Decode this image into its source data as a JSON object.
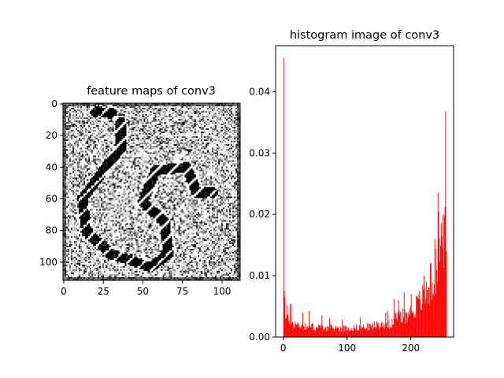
{
  "chart_data": [
    {
      "type": "heatmap",
      "title": "feature maps of conv3",
      "colormap": "gray",
      "shape": [
        112,
        112
      ],
      "xlim": [
        -0.5,
        111.5
      ],
      "ylim": [
        111.5,
        -0.5
      ],
      "xticks": [
        0,
        25,
        50,
        75,
        100
      ],
      "yticks": [
        0,
        20,
        40,
        60,
        80,
        100
      ],
      "description_of_content": "noisy light-gray background with a dark dashed curve (snake-like stroke) forming a 'C' arc and a spiral",
      "stroke_segments": [
        {
          "from": [
            20,
            5
          ],
          "to": [
            30,
            6
          ]
        },
        {
          "from": [
            36,
            12
          ],
          "to": [
            36,
            28
          ]
        },
        {
          "from": [
            34,
            30
          ],
          "to": [
            12,
            60
          ]
        },
        {
          "from": [
            12,
            60
          ],
          "to": [
            14,
            80
          ]
        },
        {
          "from": [
            14,
            80
          ],
          "to": [
            30,
            95
          ]
        },
        {
          "from": [
            30,
            95
          ],
          "to": [
            55,
            103
          ]
        },
        {
          "from": [
            55,
            103
          ],
          "to": [
            66,
            95
          ]
        },
        {
          "from": [
            66,
            95
          ],
          "to": [
            64,
            75
          ]
        },
        {
          "from": [
            64,
            75
          ],
          "to": [
            50,
            62
          ]
        },
        {
          "from": [
            50,
            62
          ],
          "to": [
            58,
            42
          ]
        },
        {
          "from": [
            58,
            42
          ],
          "to": [
            78,
            40
          ]
        },
        {
          "from": [
            78,
            40
          ],
          "to": [
            84,
            56
          ]
        },
        {
          "from": [
            84,
            56
          ],
          "to": [
            94,
            56
          ]
        }
      ]
    },
    {
      "type": "bar",
      "title": "histogram image of conv3",
      "color": "#ff0000",
      "xlim": [
        -12,
        267
      ],
      "ylim": [
        0,
        0.0475
      ],
      "xticks": [
        0,
        100,
        200
      ],
      "yticks": [
        0.0,
        0.01,
        0.02,
        0.03,
        0.04
      ],
      "ytick_labels": [
        "0.00",
        "0.01",
        "0.02",
        "0.03",
        "0.04"
      ],
      "bins": 256,
      "spikes": [
        {
          "x": 0,
          "y": 0.0455
        },
        {
          "x": 1,
          "y": 0.0075
        },
        {
          "x": 2,
          "y": 0.0065
        },
        {
          "x": 5,
          "y": 0.0052
        },
        {
          "x": 10,
          "y": 0.0054
        },
        {
          "x": 30,
          "y": 0.004
        },
        {
          "x": 60,
          "y": 0.0035
        },
        {
          "x": 120,
          "y": 0.0032
        },
        {
          "x": 160,
          "y": 0.004
        },
        {
          "x": 180,
          "y": 0.006
        },
        {
          "x": 200,
          "y": 0.007
        },
        {
          "x": 220,
          "y": 0.01
        },
        {
          "x": 230,
          "y": 0.012
        },
        {
          "x": 237,
          "y": 0.016
        },
        {
          "x": 242,
          "y": 0.0235
        },
        {
          "x": 250,
          "y": 0.02
        },
        {
          "x": 254,
          "y": 0.0368
        }
      ],
      "baseline_profile": [
        {
          "x": 0,
          "y": 0.003
        },
        {
          "x": 20,
          "y": 0.002
        },
        {
          "x": 60,
          "y": 0.0015
        },
        {
          "x": 100,
          "y": 0.0014
        },
        {
          "x": 140,
          "y": 0.0017
        },
        {
          "x": 170,
          "y": 0.0024
        },
        {
          "x": 200,
          "y": 0.004
        },
        {
          "x": 220,
          "y": 0.0065
        },
        {
          "x": 235,
          "y": 0.0095
        },
        {
          "x": 245,
          "y": 0.014
        },
        {
          "x": 252,
          "y": 0.0185
        },
        {
          "x": 255,
          "y": 0.02
        }
      ]
    }
  ]
}
